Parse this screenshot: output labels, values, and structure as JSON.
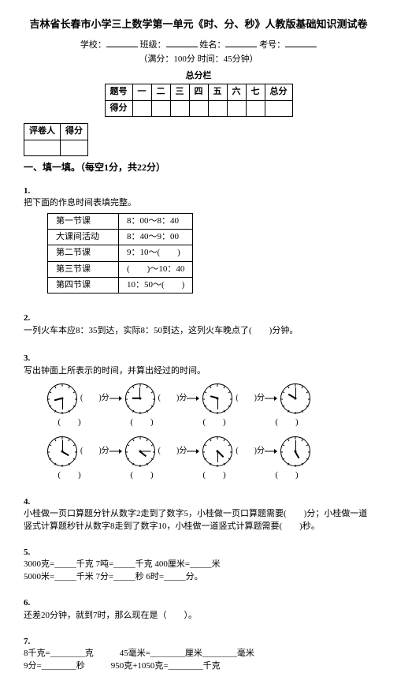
{
  "doc": {
    "title": "吉林省长春市小学三上数学第一单元《时、分、秒》人教版基础知识测试卷",
    "school_label": "学校：",
    "class_label": "班级：",
    "name_label": "姓名：",
    "exam_no_label": "考号：",
    "full_score": "（满分：100分 时间：45分钟）",
    "score_bar_title": "总分栏"
  },
  "score_table": {
    "row1": [
      "题号",
      "一",
      "二",
      "三",
      "四",
      "五",
      "六",
      "七",
      "总分"
    ],
    "row2_label": "得分"
  },
  "marker_table": {
    "c1": "评卷人",
    "c2": "得分"
  },
  "section1": "一、填一填。（每空1分，共22分）",
  "q1": {
    "num": "1.",
    "text": "把下面的作息时间表填完整。",
    "rows": [
      [
        "第一节课",
        "8：00～8：40"
      ],
      [
        "大课间活动",
        "8：40～9：00"
      ],
      [
        "第二节课",
        "9：10～(　　)"
      ],
      [
        "第三节课",
        "(　　)～10：40"
      ],
      [
        "第四节课",
        "10：50～(　　)"
      ]
    ]
  },
  "q2": {
    "num": "2.",
    "text": "一列火车本应8：35到达，实际8：50到达，这列火车晚点了(　　)分钟。"
  },
  "q3": {
    "num": "3.",
    "text": "写出钟面上所表示的时间，并算出经过的时间。",
    "gap_label": "(　　)分",
    "time_blank": "(　　)",
    "clocks_row1": [
      {
        "hour_deg": 255,
        "min_deg": 180
      },
      {
        "hour_deg": 270,
        "min_deg": 0
      },
      {
        "hour_deg": 285,
        "min_deg": 180
      },
      {
        "hour_deg": 300,
        "min_deg": 0
      }
    ],
    "clocks_row2": [
      {
        "hour_deg": 120,
        "min_deg": 0
      },
      {
        "hour_deg": 128,
        "min_deg": 90
      },
      {
        "hour_deg": 135,
        "min_deg": 180
      },
      {
        "hour_deg": 150,
        "min_deg": 0
      }
    ]
  },
  "q4": {
    "num": "4.",
    "text": "小桂做一页口算题分针从数字2走到了数字5，小桂做一页口算题需要(　　)分；小桂做一道竖式计算题秒针从数字8走到了数字10，小桂做一道竖式计算题需要(　　)秒。"
  },
  "q5": {
    "num": "5.",
    "line1": "3000克=_____千克 7吨=_____千克 400厘米=_____米",
    "line2": "5000米=_____千米 7分=_____秒 6时=_____分。"
  },
  "q6": {
    "num": "6.",
    "text": "还差20分钟，就到7时，那么现在是（　　）。"
  },
  "q7": {
    "num": "7.",
    "line1": "8千克=________克　　　45毫米=________厘米________毫米",
    "line2": "9分=________秒　　　950克+1050克=________千克"
  }
}
